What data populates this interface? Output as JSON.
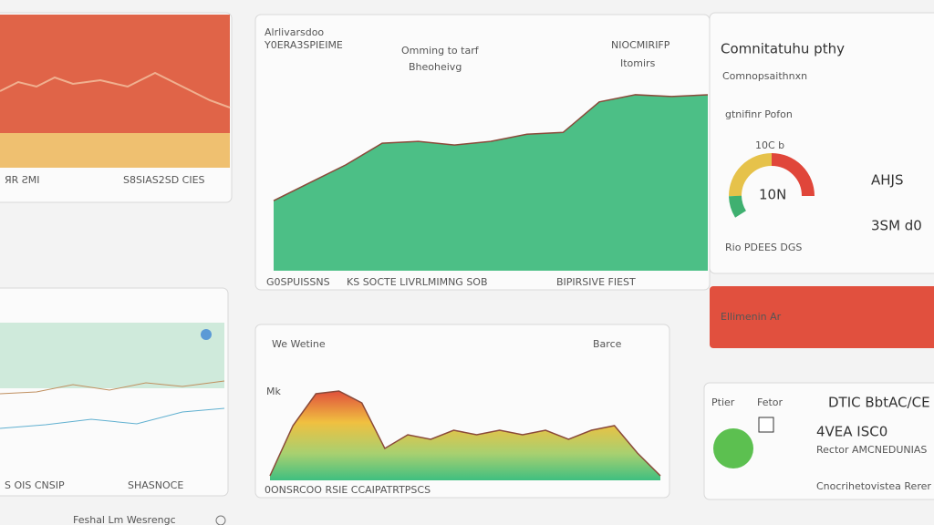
{
  "top_left_card": {
    "label": "ЯR ƧMI",
    "caption": "S8SIAS2SD CIES"
  },
  "main_card": {
    "title": "Alrlivarsdoo",
    "subtitle": "Y0ERA3SPIEIME",
    "center_title": "Omming to tarf",
    "center_subtitle": "Bheoheivg",
    "right_label": "NIOCMIRIFP",
    "right_sub": "Itomirs",
    "footer_left": "G0SPUISSNS",
    "footer_mid": "KS SOCTE LIVRLMIMNG SOB",
    "footer_right": "BIPIRSIVE FIEST",
    "chart": {
      "type": "area",
      "values": [
        39,
        49,
        59,
        71,
        72,
        70,
        72,
        76,
        77,
        94,
        98,
        97,
        98
      ],
      "ylim": [
        0,
        100
      ],
      "color": "#4cbf86"
    }
  },
  "right_card": {
    "title": "Comnitatuhu pthy",
    "subtitle": "Comnopsaithnxn",
    "note": "gtnifinr Pofon",
    "gauge_top": "10C b",
    "gauge_value": "10N",
    "stat_1": "AHJS",
    "stat_2": "3SM d0",
    "footer": "Rio PDEES DGS"
  },
  "banner": {
    "text": "Ellimenin Ar"
  },
  "bottom_left_card": {
    "footer_left": "S OIS CNSIP",
    "footer_right": "SHASNOCE"
  },
  "bottom_mid_card": {
    "title": "We Wetine",
    "action": "Barce",
    "axis_label": "Mk",
    "footer": "0ONSRCOO RSIE CCAIPATRTPSCS",
    "chart": {
      "type": "area",
      "values": [
        5,
        60,
        95,
        98,
        85,
        35,
        50,
        45,
        55,
        50,
        55,
        50,
        55,
        45,
        55,
        60,
        30,
        5
      ],
      "ylim": [
        0,
        100
      ]
    }
  },
  "bottom_right_card": {
    "label_1": "Ptier",
    "label_2": "Fetor",
    "stat_1": "DTIC BbtAC/CE",
    "stat_2": "4VEA ISC0",
    "caption": "Rector AMCNEDUNIAS",
    "footer": "Cnocrihetovistea Rerer"
  },
  "footer": {
    "text": "Feshal Lm Wesrengc"
  }
}
